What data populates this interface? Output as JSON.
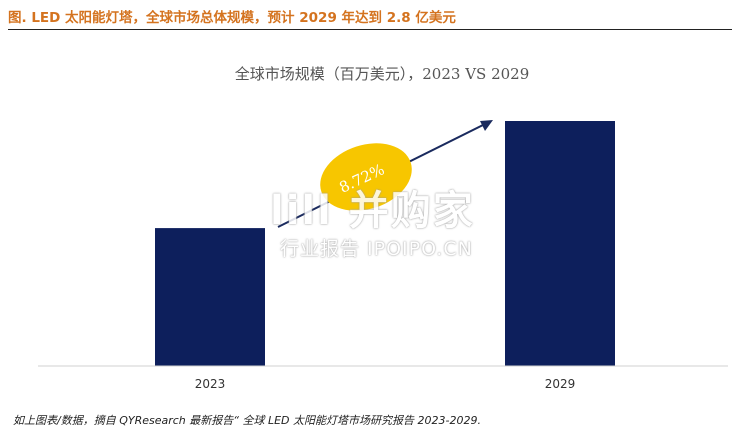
{
  "figure": {
    "caption": "图.  LED 太阳能灯塔，全球市场总体规模，预计 2029 年达到 2.8 亿美元",
    "source_note": "如上图表/数据，摘自 QYResearch 最新报告“ 全球 LED 太阳能灯塔市场研究报告 2023-2029.",
    "watermark_main": "lill 并购家",
    "watermark_sub": "行业报告 IPOIPO.CN"
  },
  "colors": {
    "bar": "#0d1f5c",
    "arrow": "#1a2a5e",
    "badge": "#f7c600",
    "caption": "#d4731f"
  },
  "chart_data": {
    "type": "bar",
    "title": "全球市场规模（百万美元），2023 VS 2029",
    "categories": [
      "2023",
      "2029"
    ],
    "values": [
      157.6,
      280
    ],
    "ylim": [
      0,
      320
    ],
    "annotation": "8.72%",
    "grid": false,
    "legend": "none"
  }
}
